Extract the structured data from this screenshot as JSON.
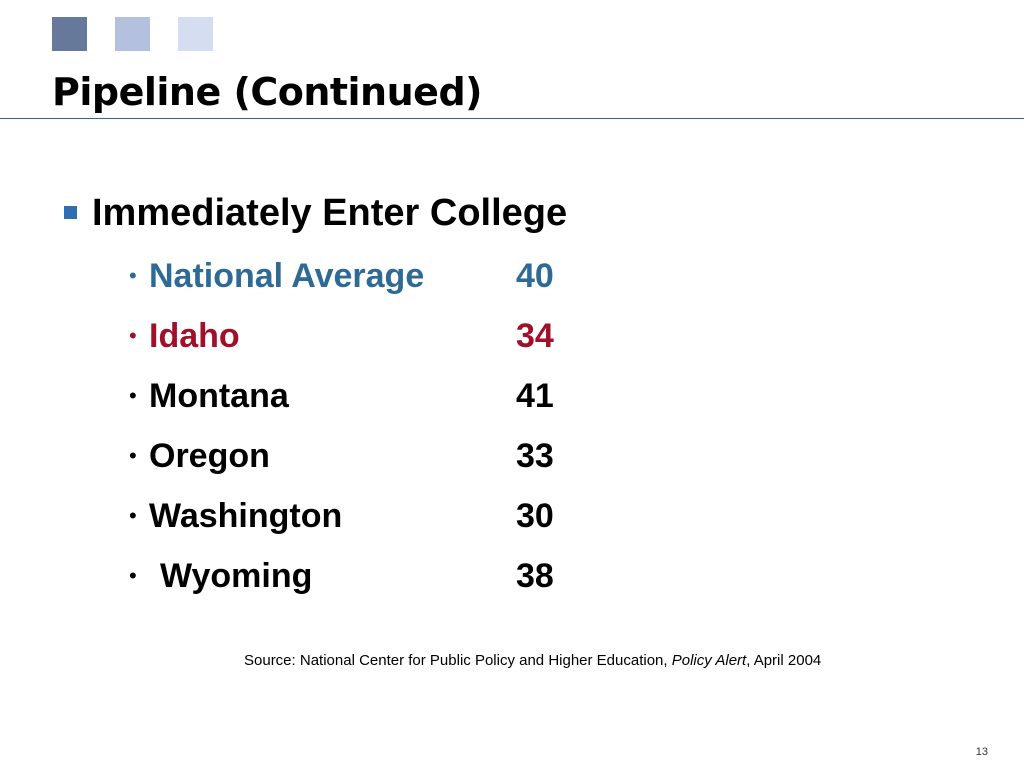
{
  "slide": {
    "title": "Pipeline (Continued)",
    "heading": "Immediately Enter College",
    "rows": [
      {
        "label": "National Average",
        "value": "40"
      },
      {
        "label": "Idaho",
        "value": "34"
      },
      {
        "label": "Montana",
        "value": "41"
      },
      {
        "label": "Oregon",
        "value": "33"
      },
      {
        "label": "Washington",
        "value": "30"
      },
      {
        "label": "Wyoming",
        "value": "38"
      }
    ],
    "source": {
      "prefix": "Source: National Center for Public Policy and Higher Education, ",
      "italic": "Policy Alert",
      "suffix": ", April 2004"
    },
    "page_number": "13"
  },
  "colors": {
    "accent_blue": "#2e6a96",
    "highlight_red": "#a0102a",
    "bullet_blue": "#2f6fb0"
  }
}
